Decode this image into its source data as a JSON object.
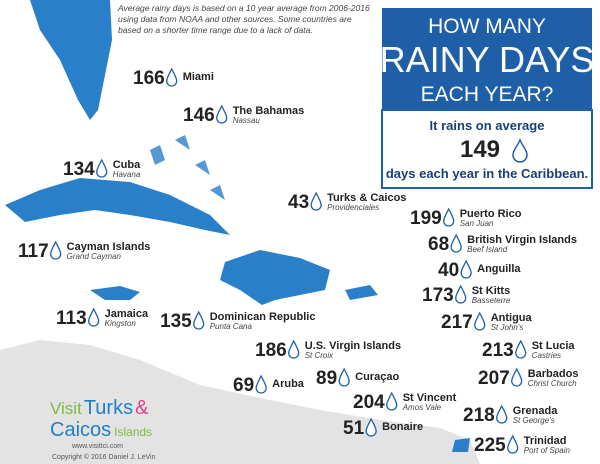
{
  "note": [
    "Average rainy days is based on a 10 year average from 2006-2016",
    "using data from NOAA and other sources. Some countries are",
    "based on a shorter time range due to a lack of data."
  ],
  "title": [
    "HOW MANY",
    "RAINY DAYS",
    "EACH YEAR?"
  ],
  "average": {
    "before": "It rains on average",
    "days": 149,
    "after": "days each year in the Caribbean."
  },
  "places": [
    {
      "days": 166,
      "name": "Miami"
    },
    {
      "days": 146,
      "name": "The Bahamas",
      "sub": "Nassau"
    },
    {
      "days": 134,
      "name": "Cuba",
      "sub": "Havana"
    },
    {
      "days": 117,
      "name": "Cayman Islands",
      "sub": "Grand Cayman"
    },
    {
      "days": 113,
      "name": "Jamaica",
      "sub": "Kingston"
    },
    {
      "days": 135,
      "name": "Dominican Republic",
      "sub": "Punta Cana"
    },
    {
      "days": 43,
      "name": "Turks & Caicos",
      "sub": "Providenciales"
    },
    {
      "days": 199,
      "name": "Puerto Rico",
      "sub": "San Juan"
    },
    {
      "days": 68,
      "name": "British Virgin Islands",
      "sub": "Beef Island"
    },
    {
      "days": 40,
      "name": "Anguilla"
    },
    {
      "days": 173,
      "name": "St Kitts",
      "sub": "Basseterre"
    },
    {
      "days": 217,
      "name": "Antigua",
      "sub": "St John's"
    },
    {
      "days": 186,
      "name": "U.S. Virgin Islands",
      "sub": "St Croix"
    },
    {
      "days": 213,
      "name": "St Lucia",
      "sub": "Castries"
    },
    {
      "days": 207,
      "name": "Barbados",
      "sub": "Christ Church"
    },
    {
      "days": 69,
      "name": "Aruba"
    },
    {
      "days": 89,
      "name": "Curaçao"
    },
    {
      "days": 204,
      "name": "St Vincent",
      "sub": "Amos Vale"
    },
    {
      "days": 218,
      "name": "Grenada",
      "sub": "St George's"
    },
    {
      "days": 51,
      "name": "Bonaire"
    },
    {
      "days": 225,
      "name": "Trinidad",
      "sub": "Port of Spain"
    }
  ],
  "logo": {
    "visit": "Visit",
    "turks": "Turks",
    "amp": "&",
    "caicos": "Caicos",
    "islands": "Islands",
    "url": "www.visittci.com",
    "copyright": "Copyright © 2016 Daniel J. LeVin"
  }
}
